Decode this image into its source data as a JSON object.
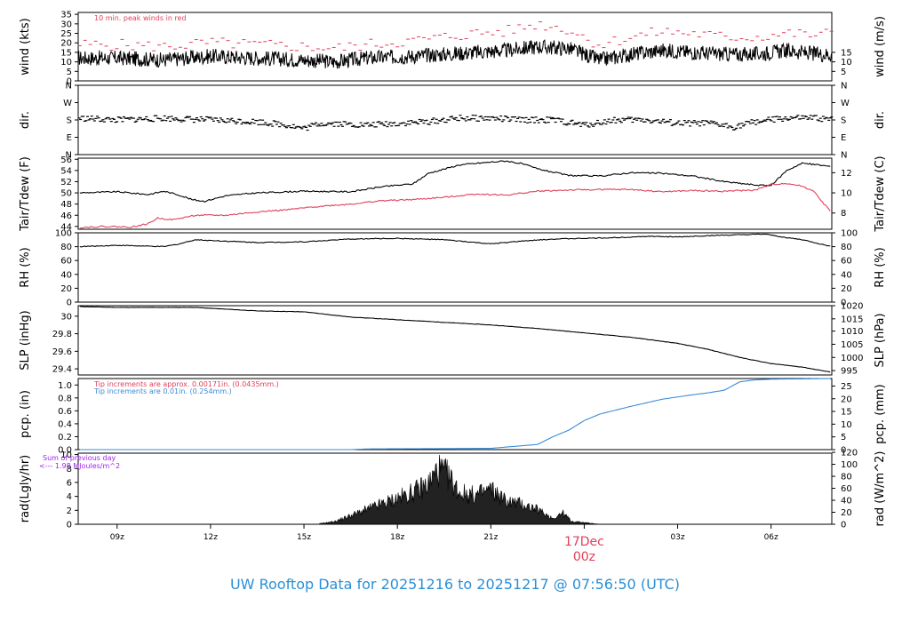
{
  "footer_title": "UW Rooftop Data for 20251216  to  20251217 @ 07:56:50  (UTC)",
  "colors": {
    "primary": "#000000",
    "peak": "#e0405a",
    "pcp_blue": "#3a8bd6",
    "rad_note": "#a020f0",
    "date": "#e0405a"
  },
  "time_axis": {
    "start_hour": 7.75,
    "end_hour": 31.95,
    "ticks": [
      {
        "hour": 9,
        "label": "09z"
      },
      {
        "hour": 12,
        "label": "12z"
      },
      {
        "hour": 15,
        "label": "15z"
      },
      {
        "hour": 18,
        "label": "18z"
      },
      {
        "hour": 21,
        "label": "21z"
      },
      {
        "hour": 24,
        "label": ""
      },
      {
        "hour": 27,
        "label": "03z"
      },
      {
        "hour": 30,
        "label": "06z"
      }
    ],
    "date_marker": {
      "hour": 24,
      "date_label": "17Dec",
      "time_label": "00z"
    }
  },
  "chart_data": [
    {
      "type": "line",
      "id": "wind",
      "ylabel": "wind (kts)",
      "ylabel_right": "wind (m/s)",
      "ylim": [
        0,
        36
      ],
      "yticks": [
        0,
        5,
        10,
        15,
        20,
        25,
        30,
        35
      ],
      "right_ticks": [
        {
          "v": 5,
          "label": "5"
        },
        {
          "v": 10,
          "label": "10"
        },
        {
          "v": 15,
          "label": "15"
        }
      ],
      "annotation": "10 min. peak winds in red",
      "series": [
        {
          "x": [
            7.8,
            9,
            10.5,
            12,
            13.5,
            15,
            16,
            17,
            18.5,
            19.5,
            20.5,
            21.5,
            22.5,
            23.5,
            24.5,
            25.5,
            26.5,
            27.5,
            28.5,
            29.5,
            30.5,
            31.5,
            31.95
          ],
          "y": [
            12,
            12,
            11,
            13,
            12,
            11,
            10,
            12,
            13,
            14,
            15,
            16,
            18,
            17,
            11,
            14,
            16,
            15,
            14,
            14,
            16,
            14,
            14
          ]
        },
        {
          "x": [
            7.8,
            9,
            10.5,
            12,
            13.5,
            15,
            16,
            17,
            18.5,
            19.5,
            20.5,
            21.5,
            22.5,
            23.5,
            24.5,
            25.5,
            26.5,
            27.5,
            28.5,
            29.5,
            30.5,
            31.5,
            31.95
          ],
          "y": [
            19,
            19,
            18,
            20,
            19,
            18,
            17,
            19,
            21,
            23,
            25,
            26,
            30,
            27,
            19,
            23,
            26,
            25,
            23,
            23,
            25,
            24,
            25
          ]
        }
      ]
    },
    {
      "type": "scatter",
      "id": "dir",
      "ylabel": "dir.",
      "ylabel_right": "dir.",
      "ylim": [
        0,
        4
      ],
      "yticks": [
        {
          "v": 0,
          "label": "N"
        },
        {
          "v": 1,
          "label": "E"
        },
        {
          "v": 2,
          "label": "S"
        },
        {
          "v": 3,
          "label": "W"
        },
        {
          "v": 4,
          "label": "N"
        }
      ],
      "series": [
        {
          "x": [
            7.8,
            9,
            10.5,
            12,
            13.5,
            14.5,
            15,
            15.5,
            16,
            17,
            18,
            19,
            20,
            21,
            22,
            23,
            24,
            25,
            26,
            27,
            28,
            28.8,
            29.5,
            30.5,
            31.5,
            31.95
          ],
          "y": [
            2.1,
            2.0,
            2.1,
            2.0,
            1.9,
            1.7,
            1.5,
            1.8,
            1.8,
            1.7,
            1.8,
            1.9,
            2.1,
            2.1,
            2.0,
            2.0,
            1.7,
            2.0,
            2.0,
            1.8,
            1.8,
            1.6,
            1.9,
            2.1,
            2.1,
            2.0
          ]
        }
      ]
    },
    {
      "type": "line",
      "id": "temp",
      "ylabel": "Tair/Tdew (F)",
      "ylabel_right": "Tair/Tdew (C)",
      "ylim": [
        43.5,
        56.2
      ],
      "yticks": [
        44,
        46,
        48,
        50,
        52,
        54,
        56
      ],
      "right_ticks": [
        {
          "v": 46.4,
          "label": "8"
        },
        {
          "v": 50,
          "label": "10"
        },
        {
          "v": 53.6,
          "label": "12"
        }
      ],
      "series": [
        {
          "x": [
            7.8,
            9,
            10,
            10.5,
            11,
            11.4,
            11.8,
            12.5,
            13.5,
            15,
            16.5,
            17.5,
            18.5,
            19,
            20,
            21,
            21.5,
            22,
            22.5,
            23.5,
            24.5,
            25.5,
            26.5,
            27.5,
            28.5,
            29.5,
            30,
            30.5,
            31,
            31.5,
            31.95
          ],
          "y": [
            50.0,
            50.2,
            49.7,
            50.3,
            49.6,
            48.8,
            48.5,
            49.5,
            50.0,
            50.3,
            50.2,
            51.1,
            51.6,
            53.5,
            55.0,
            55.5,
            55.7,
            55.2,
            54.3,
            53.1,
            53.0,
            53.6,
            53.5,
            53.0,
            52.0,
            51.4,
            51.3,
            54.0,
            55.3,
            55.0,
            54.7
          ]
        },
        {
          "x": [
            7.8,
            8.5,
            9.5,
            10,
            10.3,
            10.8,
            11.5,
            12.5,
            13.5,
            14.5,
            15.5,
            16.5,
            17.5,
            18.5,
            19.5,
            20.5,
            21.5,
            22.5,
            23.5,
            24.5,
            25.5,
            26.5,
            27.5,
            28.5,
            29.5,
            30,
            30.5,
            31,
            31.4,
            31.7,
            31.95
          ],
          "y": [
            43.8,
            44.0,
            43.9,
            44.5,
            45.5,
            45.2,
            46.0,
            46.0,
            46.6,
            47.0,
            47.6,
            48.0,
            48.6,
            48.8,
            49.2,
            49.8,
            49.6,
            50.3,
            50.5,
            50.6,
            50.6,
            50.2,
            50.4,
            50.3,
            50.5,
            51.5,
            51.7,
            51.2,
            50.2,
            48.0,
            46.5
          ]
        }
      ]
    },
    {
      "type": "line",
      "id": "rh",
      "ylabel": "RH (%)",
      "ylabel_right": "RH (%)",
      "ylim": [
        0,
        100
      ],
      "yticks": [
        0,
        20,
        40,
        60,
        80,
        100
      ],
      "right_ticks": [
        {
          "v": 0,
          "label": "0"
        },
        {
          "v": 20,
          "label": "20"
        },
        {
          "v": 40,
          "label": "40"
        },
        {
          "v": 60,
          "label": "60"
        },
        {
          "v": 80,
          "label": "80"
        },
        {
          "v": 100,
          "label": "100"
        }
      ],
      "series": [
        {
          "x": [
            7.8,
            9,
            10.5,
            11,
            11.5,
            12.5,
            13.5,
            15,
            16.5,
            18,
            19.5,
            20.5,
            21,
            22,
            23,
            24,
            25,
            26,
            27,
            28,
            29,
            29.8,
            30.5,
            31,
            31.95
          ],
          "y": [
            80,
            82,
            80,
            84,
            90,
            88,
            86,
            87,
            91,
            92,
            90,
            86,
            84,
            88,
            91,
            92,
            93,
            95,
            94,
            96,
            97,
            98,
            93,
            90,
            80
          ]
        }
      ]
    },
    {
      "type": "line",
      "id": "slp",
      "ylabel": "SLP (inHg)",
      "ylabel_right": "SLP (hPa)",
      "ylim": [
        29.33,
        30.12
      ],
      "yticks": [
        29.4,
        29.6,
        29.8,
        30.0
      ],
      "right_ticks": [
        {
          "v": 29.38,
          "label": "995"
        },
        {
          "v": 29.53,
          "label": "1000"
        },
        {
          "v": 29.68,
          "label": "1005"
        },
        {
          "v": 29.83,
          "label": "1010"
        },
        {
          "v": 29.97,
          "label": "1015"
        },
        {
          "v": 30.12,
          "label": "1020"
        }
      ],
      "series": [
        {
          "x": [
            7.8,
            9,
            10.5,
            11.5,
            12.5,
            13.5,
            15,
            16.5,
            18,
            19.5,
            21,
            22.5,
            24,
            25.5,
            27,
            28,
            29,
            30,
            31,
            31.95
          ],
          "y": [
            30.11,
            30.1,
            30.1,
            30.1,
            30.08,
            30.06,
            30.05,
            29.99,
            29.96,
            29.93,
            29.9,
            29.86,
            29.81,
            29.76,
            29.69,
            29.62,
            29.53,
            29.46,
            29.42,
            29.36
          ]
        }
      ]
    },
    {
      "type": "line",
      "id": "pcp",
      "ylabel": "pcp. (in)",
      "ylabel_right": "pcp. (mm)",
      "ylim": [
        0,
        1.1
      ],
      "yticks": [
        0.0,
        0.2,
        0.4,
        0.6,
        0.8,
        1.0
      ],
      "ytick_labels": [
        "0.0",
        "0.2",
        "0.4",
        "0.6",
        "0.8",
        "1.0"
      ],
      "right_ticks": [
        {
          "v": 0.0,
          "label": "0"
        },
        {
          "v": 0.197,
          "label": "5"
        },
        {
          "v": 0.394,
          "label": "10"
        },
        {
          "v": 0.591,
          "label": "15"
        },
        {
          "v": 0.787,
          "label": "20"
        },
        {
          "v": 0.984,
          "label": "25"
        }
      ],
      "note_red": "Tip increments are approx. 0.00171in. (0.0435mm.)",
      "note_blue": "Tip increments are 0.01in. (0.254mm.)",
      "series": [
        {
          "x": [
            7.8,
            16.5,
            17,
            21,
            22.5,
            23,
            23.5,
            24,
            24.5,
            25.5,
            26.5,
            27.5,
            28,
            28.5,
            29,
            29.5,
            30,
            31.95
          ],
          "y": [
            0.0,
            0.0,
            0.01,
            0.02,
            0.08,
            0.2,
            0.3,
            0.45,
            0.55,
            0.67,
            0.78,
            0.85,
            0.88,
            0.92,
            1.05,
            1.08,
            1.09,
            1.1
          ]
        }
      ]
    },
    {
      "type": "area",
      "id": "rad",
      "ylabel": "rad(Lgly/hr)",
      "ylabel_right": "rad (W/m^2)",
      "ylim": [
        0,
        10.2
      ],
      "yticks": [
        0,
        2,
        4,
        6,
        8,
        10
      ],
      "right_ticks": [
        {
          "v": 0,
          "label": "0"
        },
        {
          "v": 1.72,
          "label": "20"
        },
        {
          "v": 3.44,
          "label": "40"
        },
        {
          "v": 5.16,
          "label": "60"
        },
        {
          "v": 6.88,
          "label": "80"
        },
        {
          "v": 8.6,
          "label": "100"
        },
        {
          "v": 10.32,
          "label": "120"
        }
      ],
      "note_line1": "Sum of previous day",
      "note_line2": "<--- 1.98 MJoules/m^2",
      "series": [
        {
          "x": [
            15.5,
            16,
            16.5,
            17,
            17.5,
            18,
            18.5,
            19,
            19.3,
            19.6,
            20,
            20.5,
            21,
            21.5,
            22,
            22.5,
            23,
            23.3,
            23.6,
            24,
            24.5
          ],
          "y": [
            0.1,
            0.5,
            1.5,
            2.5,
            3.5,
            4.5,
            5.5,
            7.0,
            9.5,
            8.5,
            5.5,
            5.0,
            6.0,
            4.0,
            3.5,
            2.5,
            1.0,
            2.0,
            0.5,
            0.3,
            0.0
          ]
        }
      ]
    }
  ]
}
